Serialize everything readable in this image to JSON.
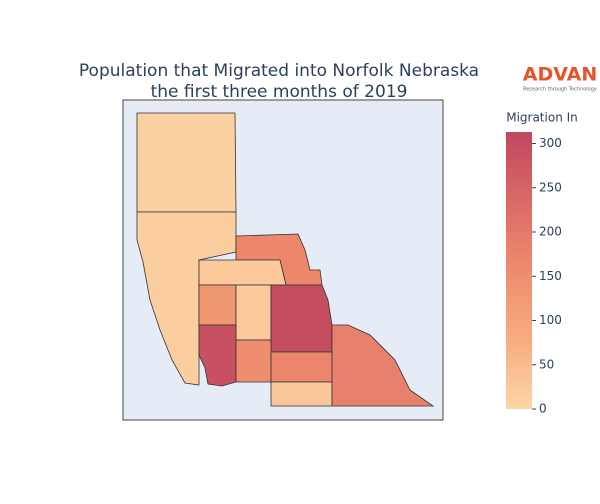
{
  "chart_data": {
    "type": "choropleth",
    "title": [
      "Population that Migrated into Norfolk Nebraska",
      "the first three months of 2019"
    ],
    "values": [
      10,
      15,
      165,
      25,
      130,
      25,
      300,
      290,
      150,
      170,
      30,
      180
    ],
    "colorbar_title": "Migration In",
    "clim": [
      0,
      313
    ],
    "ticks": [
      0,
      50,
      100,
      150,
      200,
      250,
      300
    ],
    "colorscale": [
      "#fcd6a6",
      "#f8ac80",
      "#ee8b6d",
      "#db6a66",
      "#c0475f"
    ],
    "background": "#e5ecf6"
  },
  "logo": {
    "name": "ADVAN",
    "tagline": "Research through Technology"
  }
}
